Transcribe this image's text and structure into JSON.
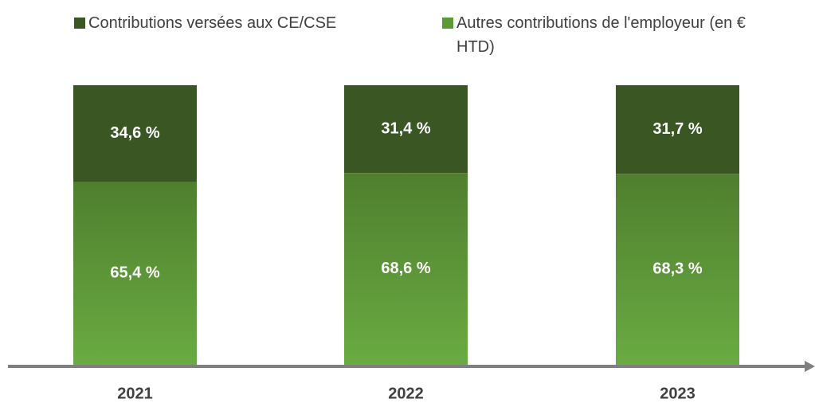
{
  "chart_data": {
    "type": "stacked_bar_100",
    "categories": [
      "2021",
      "2022",
      "2023"
    ],
    "series": [
      {
        "name": "Contributions versées aux CE/CSE",
        "color": "#3a5623",
        "values": [
          34.6,
          31.4,
          31.7
        ],
        "value_labels": [
          "34,6 %",
          "31,4 %",
          "31,7 %"
        ]
      },
      {
        "name": "Autres contributions de l'employeur (en € HTD)",
        "color": "#4f7f2e",
        "values": [
          65.4,
          68.6,
          68.3
        ],
        "value_labels": [
          "65,4 %",
          "68,6 %",
          "68,3 %"
        ]
      }
    ]
  }
}
